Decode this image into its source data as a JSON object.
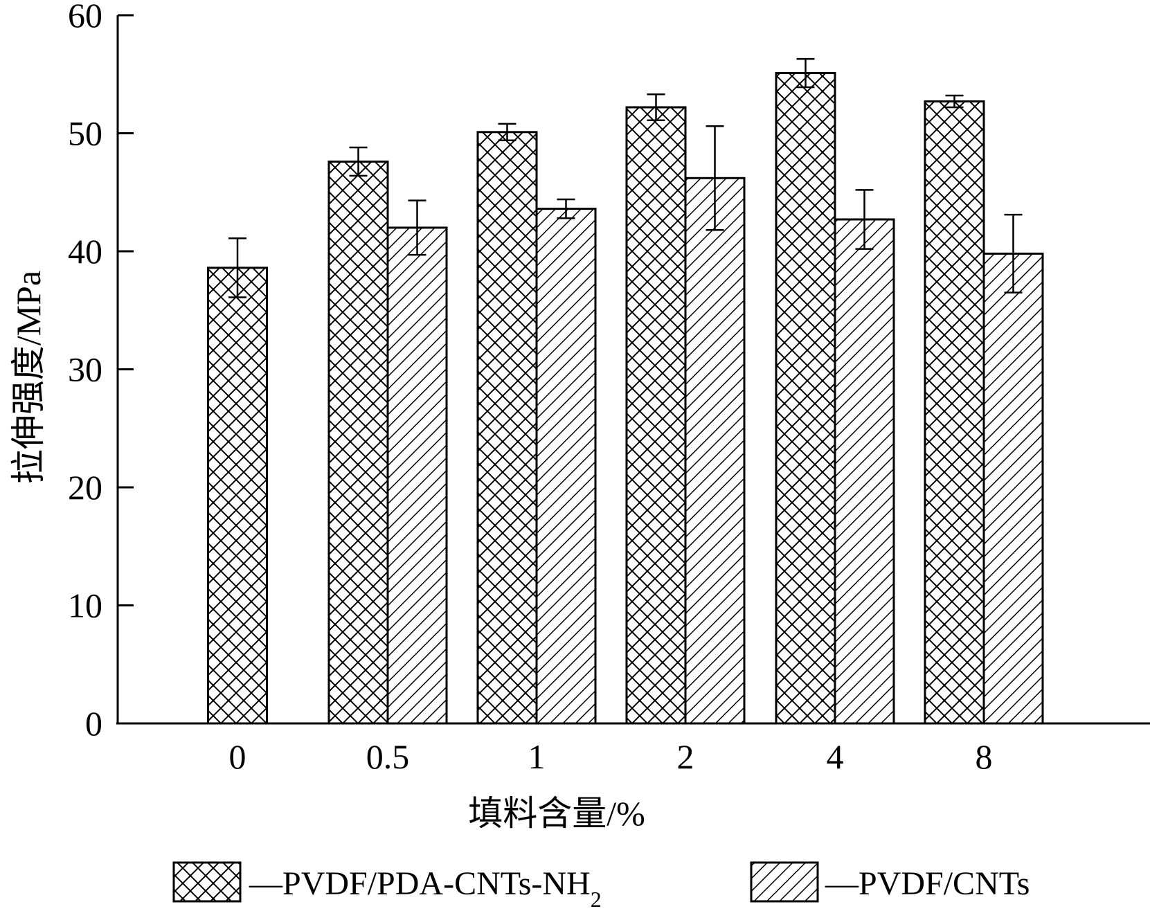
{
  "chart_data": {
    "type": "bar",
    "categories": [
      "0",
      "0.5",
      "1",
      "2",
      "4",
      "8"
    ],
    "series": [
      {
        "name": "PVDF/PDA-CNTs-NH2",
        "legend_main": "—PVDF/PDA-CNTs-NH",
        "legend_sub": "2",
        "pattern": "crosshatch",
        "values": [
          38.6,
          47.6,
          50.1,
          52.2,
          55.1,
          52.7
        ],
        "errors": [
          2.5,
          1.2,
          0.7,
          1.1,
          1.2,
          0.5
        ]
      },
      {
        "name": "PVDF/CNTs",
        "legend_main": "—PVDF/CNTs",
        "legend_sub": "",
        "pattern": "diagonal",
        "values": [
          null,
          42.0,
          43.6,
          46.2,
          42.7,
          39.8
        ],
        "errors": [
          null,
          2.3,
          0.8,
          4.4,
          2.5,
          3.3
        ]
      }
    ],
    "ylim": [
      0,
      60
    ],
    "yticks": [
      "0",
      "10",
      "20",
      "30",
      "40",
      "50",
      "60"
    ],
    "xlabel": "填料含量/%",
    "ylabel": "拉伸强度/MPa",
    "legend_position": "bottom",
    "grid": false
  }
}
